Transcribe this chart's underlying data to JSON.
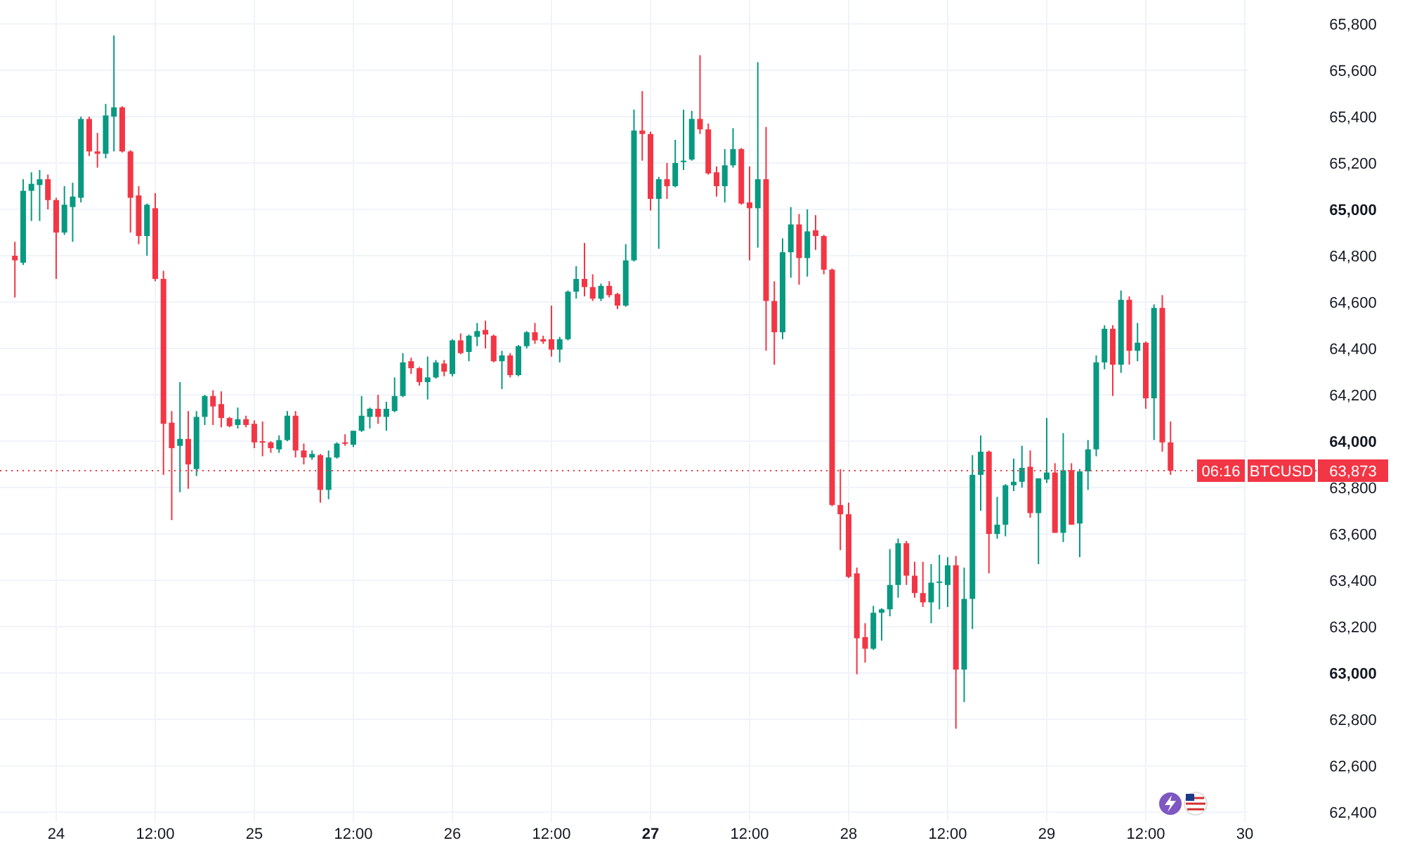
{
  "chart_data": {
    "type": "candlestick",
    "categories": [
      null,
      null,
      null,
      null,
      null,
      "24",
      null,
      null,
      null,
      null,
      null,
      null,
      null,
      null,
      null,
      null,
      null,
      "12:00",
      null,
      null,
      null,
      null,
      null,
      null,
      null,
      null,
      null,
      null,
      null,
      "25",
      null,
      null,
      null,
      null,
      null,
      null,
      null,
      null,
      null,
      null,
      null,
      "12:00",
      null,
      null,
      null,
      null,
      null,
      null,
      null,
      null,
      null,
      null,
      null,
      "26",
      null,
      null,
      null,
      null,
      null,
      null,
      null,
      null,
      null,
      null,
      null,
      "12:00",
      null,
      null,
      null,
      null,
      null,
      null,
      null,
      null,
      null,
      null,
      null,
      "27",
      null,
      null,
      null,
      null,
      null,
      null,
      null,
      null,
      null,
      null,
      null,
      "12:00",
      null,
      null,
      null,
      null,
      null,
      null,
      null,
      null,
      null,
      null,
      null,
      "28",
      null,
      null,
      null,
      null,
      null,
      null,
      null,
      null,
      null,
      null,
      null,
      "12:00",
      null,
      null,
      null,
      null,
      null,
      null,
      null,
      null,
      null,
      null,
      null,
      "29",
      null,
      null,
      null,
      null,
      null,
      null,
      null,
      null,
      null,
      null,
      null,
      "12:00",
      null,
      null,
      null,
      null,
      null,
      null,
      null,
      null,
      null,
      null,
      null,
      "30"
    ],
    "ohlc": [
      [
        64800,
        64860,
        64620,
        64780
      ],
      [
        64770,
        65130,
        64760,
        65080
      ],
      [
        65080,
        65160,
        64950,
        65110
      ],
      [
        65105,
        65170,
        64950,
        65130
      ],
      [
        65130,
        65150,
        65000,
        65040
      ],
      [
        65040,
        65050,
        64700,
        64900
      ],
      [
        64900,
        65100,
        64890,
        65020
      ],
      [
        65010,
        65115,
        64860,
        65055
      ],
      [
        65050,
        65400,
        65030,
        65390
      ],
      [
        65390,
        65400,
        65230,
        65250
      ],
      [
        65250,
        65330,
        65180,
        65240
      ],
      [
        65240,
        65455,
        65220,
        65405
      ],
      [
        65400,
        65750,
        65250,
        65440
      ],
      [
        65440,
        65445,
        65245,
        65250
      ],
      [
        65250,
        65255,
        64900,
        65050
      ],
      [
        65060,
        65100,
        64850,
        64885
      ],
      [
        64885,
        65025,
        64800,
        65020
      ],
      [
        65005,
        65070,
        64690,
        64700
      ],
      [
        64700,
        64735,
        63855,
        64075
      ],
      [
        64080,
        64130,
        63660,
        63970
      ],
      [
        63980,
        64255,
        63780,
        64010
      ],
      [
        64010,
        64130,
        63795,
        63900
      ],
      [
        63880,
        64130,
        63850,
        64105
      ],
      [
        64105,
        64200,
        64070,
        64195
      ],
      [
        64195,
        64220,
        64070,
        64150
      ],
      [
        64160,
        64215,
        64060,
        64100
      ],
      [
        64100,
        64105,
        64060,
        64065
      ],
      [
        64070,
        64145,
        64055,
        64095
      ],
      [
        64095,
        64110,
        64060,
        64070
      ],
      [
        64075,
        64090,
        63970,
        63995
      ],
      [
        64000,
        64085,
        63935,
        63995
      ],
      [
        63995,
        64000,
        63950,
        63970
      ],
      [
        63965,
        64025,
        63950,
        64005
      ],
      [
        64005,
        64130,
        64000,
        64110
      ],
      [
        64110,
        64130,
        63930,
        63960
      ],
      [
        63960,
        63990,
        63900,
        63930
      ],
      [
        63930,
        63960,
        63920,
        63945
      ],
      [
        63940,
        63945,
        63735,
        63790
      ],
      [
        63790,
        63960,
        63750,
        63930
      ],
      [
        63930,
        63995,
        63925,
        63990
      ],
      [
        63995,
        64030,
        63980,
        63990
      ],
      [
        63985,
        64045,
        63975,
        64045
      ],
      [
        64045,
        64195,
        64040,
        64110
      ],
      [
        64105,
        64145,
        64055,
        64140
      ],
      [
        64140,
        64200,
        64075,
        64105
      ],
      [
        64105,
        64170,
        64045,
        64140
      ],
      [
        64130,
        64275,
        64125,
        64195
      ],
      [
        64195,
        64380,
        64190,
        64340
      ],
      [
        64345,
        64360,
        64290,
        64315
      ],
      [
        64315,
        64320,
        64240,
        64255
      ],
      [
        64255,
        64365,
        64180,
        64275
      ],
      [
        64275,
        64350,
        64270,
        64340
      ],
      [
        64335,
        64350,
        64280,
        64300
      ],
      [
        64290,
        64440,
        64280,
        64435
      ],
      [
        64435,
        64465,
        64375,
        64380
      ],
      [
        64385,
        64460,
        64345,
        64455
      ],
      [
        64450,
        64510,
        64410,
        64475
      ],
      [
        64480,
        64520,
        64400,
        64460
      ],
      [
        64455,
        64460,
        64340,
        64345
      ],
      [
        64345,
        64390,
        64225,
        64370
      ],
      [
        64370,
        64380,
        64275,
        64285
      ],
      [
        64285,
        64415,
        64280,
        64410
      ],
      [
        64410,
        64475,
        64400,
        64470
      ],
      [
        64470,
        64510,
        64420,
        64435
      ],
      [
        64440,
        64455,
        64420,
        64430
      ],
      [
        64440,
        64585,
        64365,
        64395
      ],
      [
        64395,
        64450,
        64340,
        64440
      ],
      [
        64440,
        64650,
        64435,
        64645
      ],
      [
        64645,
        64755,
        64615,
        64700
      ],
      [
        64700,
        64855,
        64625,
        64665
      ],
      [
        64665,
        64720,
        64605,
        64615
      ],
      [
        64615,
        64680,
        64605,
        64670
      ],
      [
        64670,
        64690,
        64620,
        64630
      ],
      [
        64635,
        64640,
        64570,
        64585
      ],
      [
        64585,
        64850,
        64580,
        64780
      ],
      [
        64780,
        65430,
        64775,
        65340
      ],
      [
        65340,
        65510,
        65210,
        65325
      ],
      [
        65325,
        65335,
        64995,
        65045
      ],
      [
        65045,
        65140,
        64830,
        65130
      ],
      [
        65130,
        65200,
        65045,
        65100
      ],
      [
        65100,
        65300,
        65095,
        65200
      ],
      [
        65205,
        65430,
        65170,
        65210
      ],
      [
        65215,
        65425,
        65210,
        65390
      ],
      [
        65390,
        65665,
        65325,
        65345
      ],
      [
        65345,
        65370,
        65150,
        65155
      ],
      [
        65160,
        65185,
        65055,
        65100
      ],
      [
        65100,
        65260,
        65030,
        65190
      ],
      [
        65190,
        65350,
        65180,
        65260
      ],
      [
        65260,
        65265,
        65020,
        65025
      ],
      [
        65030,
        65185,
        64780,
        65005
      ],
      [
        65005,
        65635,
        64835,
        65130
      ],
      [
        65130,
        65355,
        64390,
        64605
      ],
      [
        64605,
        64690,
        64330,
        64470
      ],
      [
        64470,
        64875,
        64440,
        64815
      ],
      [
        64815,
        65010,
        64705,
        64935
      ],
      [
        64935,
        64980,
        64675,
        64790
      ],
      [
        64790,
        65000,
        64710,
        64905
      ],
      [
        64910,
        64975,
        64825,
        64885
      ],
      [
        64885,
        64890,
        64720,
        64740
      ],
      [
        64740,
        64745,
        63720,
        63725
      ],
      [
        63725,
        63880,
        63530,
        63685
      ],
      [
        63685,
        63735,
        63410,
        63415
      ],
      [
        63430,
        63455,
        62995,
        63150
      ],
      [
        63155,
        63215,
        63045,
        63105
      ],
      [
        63105,
        63290,
        63100,
        63260
      ],
      [
        63260,
        63280,
        63140,
        63275
      ],
      [
        63275,
        63535,
        63245,
        63380
      ],
      [
        63380,
        63580,
        63325,
        63560
      ],
      [
        63560,
        63570,
        63380,
        63420
      ],
      [
        63420,
        63480,
        63325,
        63345
      ],
      [
        63345,
        63480,
        63285,
        63305
      ],
      [
        63305,
        63470,
        63215,
        63390
      ],
      [
        63390,
        63510,
        63275,
        63395
      ],
      [
        63380,
        63500,
        63285,
        63465
      ],
      [
        63465,
        63505,
        62760,
        63015
      ],
      [
        63015,
        63455,
        62875,
        63320
      ],
      [
        63320,
        63940,
        63190,
        63855
      ],
      [
        63855,
        64025,
        63700,
        63955
      ],
      [
        63955,
        63960,
        63430,
        63600
      ],
      [
        63600,
        63760,
        63580,
        63640
      ],
      [
        63640,
        63815,
        63590,
        63810
      ],
      [
        63810,
        63925,
        63785,
        63825
      ],
      [
        63825,
        63980,
        63800,
        63885
      ],
      [
        63890,
        63960,
        63670,
        63690
      ],
      [
        63690,
        63840,
        63470,
        63840
      ],
      [
        63835,
        64100,
        63820,
        63865
      ],
      [
        63865,
        63905,
        63605,
        63605
      ],
      [
        63605,
        64035,
        63565,
        63875
      ],
      [
        63875,
        63905,
        63640,
        63640
      ],
      [
        63645,
        63880,
        63500,
        63870
      ],
      [
        63870,
        64005,
        63790,
        63965
      ],
      [
        63965,
        64370,
        63935,
        64340
      ],
      [
        64340,
        64500,
        64310,
        64485
      ],
      [
        64485,
        64500,
        64195,
        64330
      ],
      [
        64330,
        64650,
        64295,
        64610
      ],
      [
        64610,
        64625,
        64330,
        64390
      ],
      [
        64390,
        64510,
        64345,
        64425
      ],
      [
        64425,
        64430,
        64140,
        64185
      ],
      [
        64185,
        64590,
        64005,
        64575
      ],
      [
        64575,
        64630,
        63955,
        63995
      ],
      [
        63995,
        64085,
        63855,
        63873
      ],
      null,
      null,
      null,
      null,
      null,
      null,
      null,
      null,
      null
    ],
    "ylim": [
      62358,
      65903
    ],
    "yticks": [
      {
        "value": 62400,
        "label": "62,400"
      },
      {
        "value": 62600,
        "label": "62,600"
      },
      {
        "value": 62800,
        "label": "62,800"
      },
      {
        "value": 63000,
        "label": "63,000"
      },
      {
        "value": 63200,
        "label": "63,200"
      },
      {
        "value": 63400,
        "label": "63,400"
      },
      {
        "value": 63600,
        "label": "63,600"
      },
      {
        "value": 63800,
        "label": "63,800"
      },
      {
        "value": 64000,
        "label": "64,000"
      },
      {
        "value": 64200,
        "label": "64,200"
      },
      {
        "value": 64400,
        "label": "64,400"
      },
      {
        "value": 64600,
        "label": "64,600"
      },
      {
        "value": 64800,
        "label": "64,800"
      },
      {
        "value": 65000,
        "label": "65,000"
      },
      {
        "value": 65200,
        "label": "65,200"
      },
      {
        "value": 65400,
        "label": "65,400"
      },
      {
        "value": 65600,
        "label": "65,600"
      },
      {
        "value": 65800,
        "label": "65,800"
      }
    ],
    "grid": true,
    "ref_lines": [
      {
        "axis": "y",
        "value": 63873,
        "label": "63,873",
        "color": "#f23645",
        "line_style": "dotted"
      }
    ],
    "annotations": [
      "BTCUSD",
      "06:16"
    ]
  }
}
